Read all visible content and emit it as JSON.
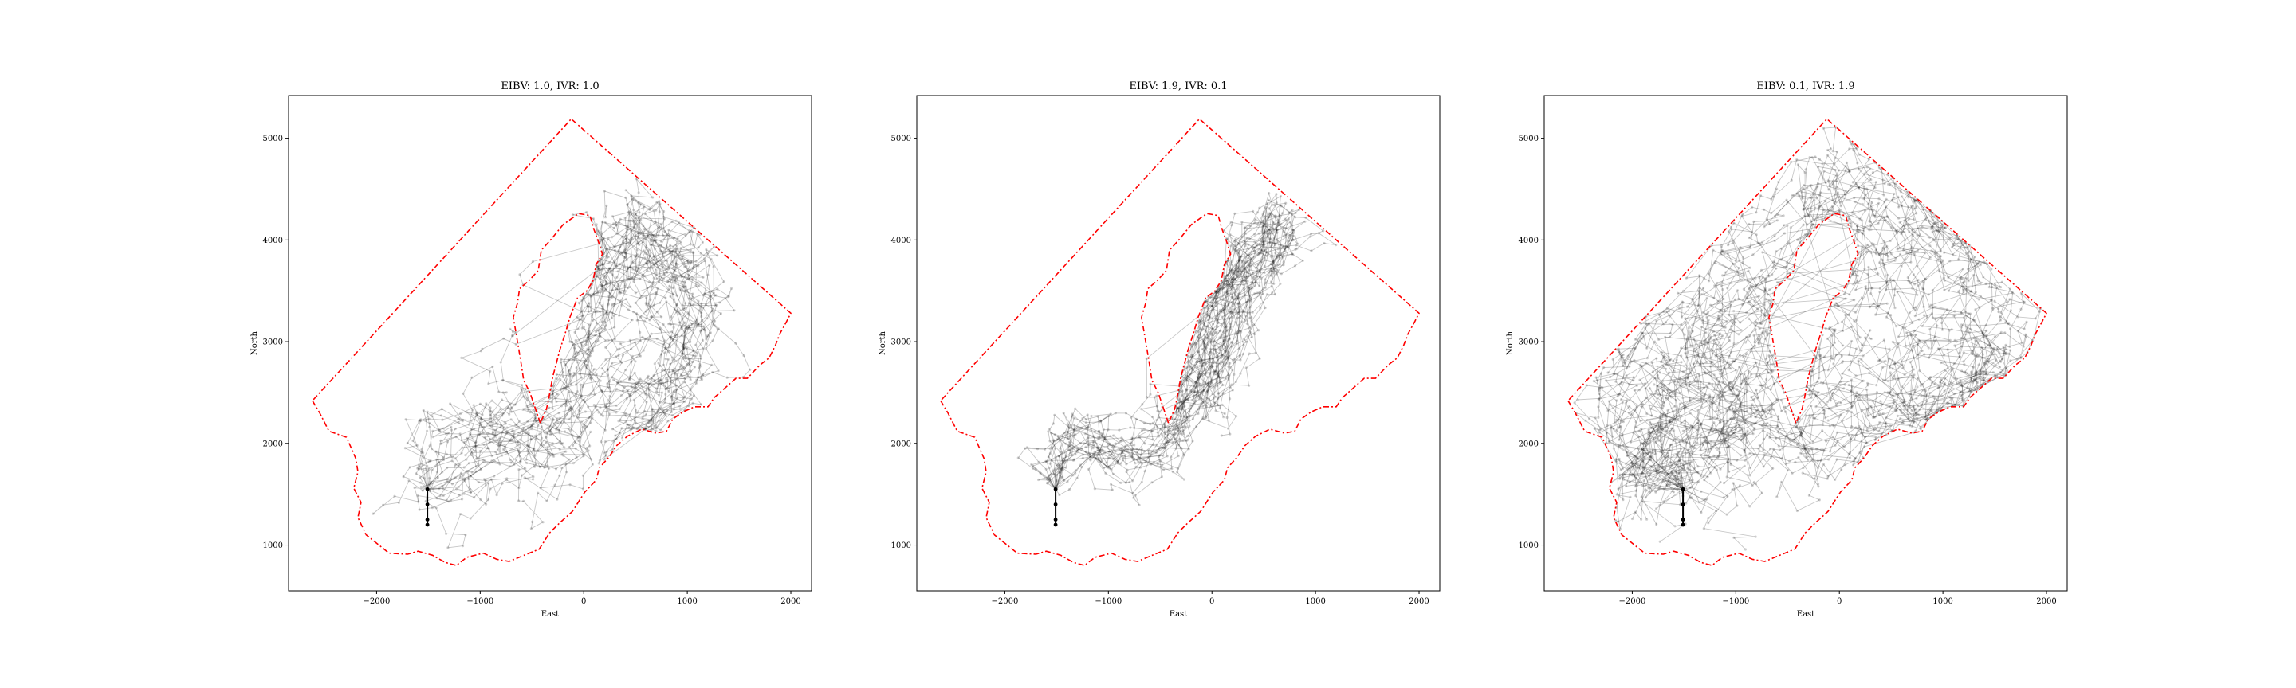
{
  "figure": {
    "background": "#ffffff"
  },
  "chart_data": [
    {
      "type": "line",
      "title": "EIBV: 1.0, IVR: 1.0",
      "xlabel": "East",
      "ylabel": "North",
      "xlim": [
        -2850,
        2200
      ],
      "ylim": [
        550,
        5420
      ],
      "xticks": [
        -2000,
        -1000,
        0,
        1000,
        2000
      ],
      "yticks": [
        1000,
        2000,
        3000,
        4000,
        5000
      ],
      "xtick_labels": [
        "−2000",
        "−1000",
        "0",
        "1000",
        "2000"
      ],
      "ytick_labels": [
        "1000",
        "2000",
        "3000",
        "4000",
        "5000"
      ],
      "grid": false,
      "boundary_color": "#ff0000",
      "path_color": "#000000",
      "path_spread": "corridor from start northeast to the east lobe",
      "start_points": [
        [
          -1510,
          1550
        ],
        [
          -1510,
          1400
        ],
        [
          -1510,
          1250
        ],
        [
          -1510,
          1200
        ]
      ]
    },
    {
      "type": "line",
      "title": "EIBV: 1.9, IVR: 0.1",
      "xlabel": "East",
      "ylabel": "North",
      "xlim": [
        -2850,
        2200
      ],
      "ylim": [
        550,
        5420
      ],
      "xticks": [
        -2000,
        -1000,
        0,
        1000,
        2000
      ],
      "yticks": [
        1000,
        2000,
        3000,
        4000,
        5000
      ],
      "xtick_labels": [
        "−2000",
        "−1000",
        "0",
        "1000",
        "2000"
      ],
      "ytick_labels": [
        "1000",
        "2000",
        "3000",
        "4000",
        "5000"
      ],
      "grid": false,
      "boundary_color": "#ff0000",
      "path_color": "#000000",
      "path_spread": "narrow corridor along the front",
      "start_points": [
        [
          -1510,
          1550
        ],
        [
          -1510,
          1400
        ],
        [
          -1510,
          1250
        ],
        [
          -1510,
          1200
        ]
      ]
    },
    {
      "type": "line",
      "title": "EIBV: 0.1, IVR: 1.9",
      "xlabel": "East",
      "ylabel": "North",
      "xlim": [
        -2850,
        2200
      ],
      "ylim": [
        550,
        5420
      ],
      "xticks": [
        -2000,
        -1000,
        0,
        1000,
        2000
      ],
      "yticks": [
        1000,
        2000,
        3000,
        4000,
        5000
      ],
      "xtick_labels": [
        "−2000",
        "−1000",
        "0",
        "1000",
        "2000"
      ],
      "ytick_labels": [
        "1000",
        "2000",
        "3000",
        "4000",
        "5000"
      ],
      "grid": false,
      "boundary_color": "#ff0000",
      "path_color": "#000000",
      "path_spread": "broad coverage of the whole field",
      "start_points": [
        [
          -1510,
          1550
        ],
        [
          -1510,
          1400
        ],
        [
          -1510,
          1250
        ],
        [
          -1510,
          1200
        ]
      ]
    }
  ],
  "boundary": {
    "outer": [
      [
        -2620,
        2420
      ],
      [
        -2550,
        2300
      ],
      [
        -2460,
        2120
      ],
      [
        -2290,
        2060
      ],
      [
        -2200,
        1850
      ],
      [
        -2180,
        1720
      ],
      [
        -2220,
        1560
      ],
      [
        -2150,
        1420
      ],
      [
        -2180,
        1270
      ],
      [
        -2100,
        1100
      ],
      [
        -1880,
        920
      ],
      [
        -1700,
        910
      ],
      [
        -1600,
        940
      ],
      [
        -1460,
        900
      ],
      [
        -1340,
        830
      ],
      [
        -1230,
        800
      ],
      [
        -1130,
        880
      ],
      [
        -970,
        920
      ],
      [
        -840,
        860
      ],
      [
        -720,
        840
      ],
      [
        -600,
        890
      ],
      [
        -430,
        960
      ],
      [
        -330,
        1120
      ],
      [
        -230,
        1220
      ],
      [
        -110,
        1330
      ],
      [
        10,
        1520
      ],
      [
        120,
        1640
      ],
      [
        150,
        1760
      ],
      [
        240,
        1860
      ],
      [
        320,
        1980
      ],
      [
        420,
        2070
      ],
      [
        560,
        2140
      ],
      [
        700,
        2100
      ],
      [
        800,
        2120
      ],
      [
        860,
        2240
      ],
      [
        960,
        2310
      ],
      [
        1070,
        2360
      ],
      [
        1200,
        2360
      ],
      [
        1260,
        2450
      ],
      [
        1360,
        2540
      ],
      [
        1470,
        2640
      ],
      [
        1580,
        2640
      ],
      [
        1700,
        2770
      ],
      [
        1790,
        2840
      ],
      [
        1850,
        2960
      ],
      [
        1890,
        3070
      ],
      [
        1960,
        3200
      ],
      [
        2000,
        3280
      ],
      [
        -120,
        5190
      ],
      [
        -2620,
        2420
      ]
    ],
    "inner": [
      [
        -420,
        2200
      ],
      [
        -470,
        2350
      ],
      [
        -520,
        2500
      ],
      [
        -580,
        2620
      ],
      [
        -610,
        2820
      ],
      [
        -640,
        3000
      ],
      [
        -680,
        3240
      ],
      [
        -640,
        3380
      ],
      [
        -620,
        3520
      ],
      [
        -530,
        3600
      ],
      [
        -440,
        3700
      ],
      [
        -410,
        3900
      ],
      [
        -320,
        4000
      ],
      [
        -200,
        4150
      ],
      [
        -50,
        4260
      ],
      [
        60,
        4240
      ],
      [
        100,
        4100
      ],
      [
        150,
        3960
      ],
      [
        180,
        3860
      ],
      [
        120,
        3760
      ],
      [
        90,
        3600
      ],
      [
        30,
        3500
      ],
      [
        -60,
        3430
      ],
      [
        -130,
        3250
      ],
      [
        -170,
        3110
      ],
      [
        -230,
        2920
      ],
      [
        -300,
        2650
      ],
      [
        -340,
        2430
      ],
      [
        -360,
        2340
      ],
      [
        -420,
        2200
      ]
    ]
  }
}
